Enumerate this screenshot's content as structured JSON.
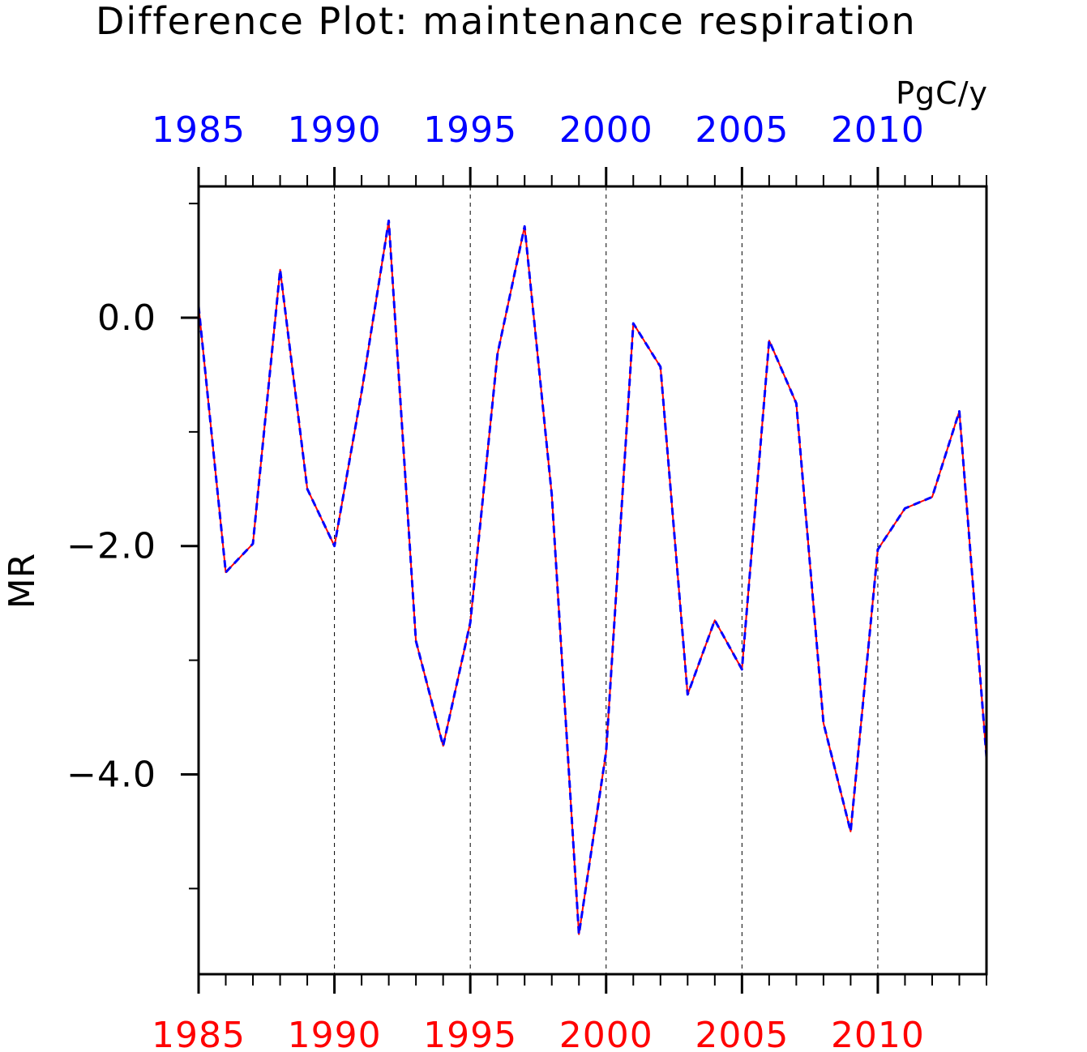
{
  "chart_data": {
    "type": "line",
    "title": "Difference Plot: maintenance respiration",
    "units": "PgC/y",
    "ylabel": "MR",
    "xlabel": "",
    "xlim": [
      1985,
      2014
    ],
    "ylim": [
      -5.75,
      1.15
    ],
    "x_ticks": [
      1985,
      1990,
      1995,
      2000,
      2005,
      2010
    ],
    "x_tick_labels": [
      "1985",
      "1990",
      "1995",
      "2000",
      "2005",
      "2010"
    ],
    "y_ticks": [
      0.0,
      -2.0,
      -4.0
    ],
    "y_tick_labels": [
      "0.0",
      "−2.0",
      "−4.0"
    ],
    "top_axis_color": "#0000ff",
    "bottom_axis_color": "#ff0000",
    "grid": "vertical dashed at major x ticks",
    "x": [
      1985,
      1986,
      1987,
      1988,
      1989,
      1990,
      1991,
      1992,
      1993,
      1994,
      1995,
      1996,
      1997,
      1998,
      1999,
      2000,
      2001,
      2002,
      2003,
      2004,
      2005,
      2006,
      2007,
      2008,
      2009,
      2010,
      2011,
      2012,
      2013,
      2014
    ],
    "series": [
      {
        "color": "#ff0000",
        "style": "solid",
        "values": [
          0.1,
          -2.23,
          -1.98,
          0.42,
          -1.5,
          -2.0,
          -0.65,
          0.85,
          -2.83,
          -3.75,
          -2.67,
          -0.32,
          0.8,
          -1.55,
          -5.4,
          -3.8,
          -0.05,
          -0.43,
          -3.3,
          -2.65,
          -3.08,
          -0.2,
          -0.75,
          -3.55,
          -4.5,
          -2.03,
          -1.67,
          -1.57,
          -0.82,
          -3.85
        ]
      },
      {
        "color": "#0000ff",
        "style": "dashed",
        "values": [
          0.1,
          -2.23,
          -1.98,
          0.42,
          -1.5,
          -2.0,
          -0.65,
          0.85,
          -2.83,
          -3.75,
          -2.67,
          -0.32,
          0.8,
          -1.55,
          -5.4,
          -3.8,
          -0.05,
          -0.43,
          -3.3,
          -2.65,
          -3.08,
          -0.2,
          -0.75,
          -3.55,
          -4.5,
          -2.03,
          -1.67,
          -1.57,
          -0.82,
          -3.85
        ]
      }
    ]
  }
}
